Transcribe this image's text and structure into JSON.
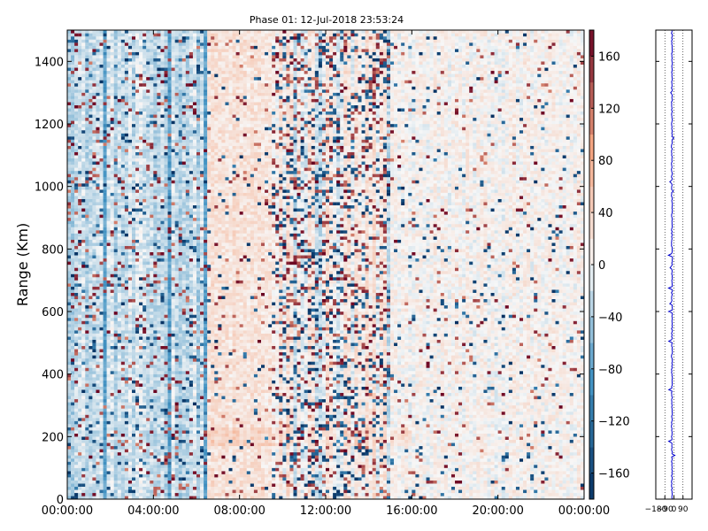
{
  "chart_data": [
    {
      "type": "heatmap",
      "title": "Phase 01: 12-Jul-2018 23:53:24",
      "xlabel": "",
      "ylabel": "Range (Km)",
      "x_tick_labels": [
        "00:00:00",
        "04:00:00",
        "08:00:00",
        "12:00:00",
        "16:00:00",
        "20:00:00",
        "00:00:00"
      ],
      "y_ticks": [
        0,
        200,
        400,
        600,
        800,
        1000,
        1200,
        1400
      ],
      "y_tick_labels": [
        "0",
        "200",
        "400",
        "600",
        "800",
        "1000",
        "1200",
        "1400"
      ],
      "xlim": [
        "00:00:00",
        "24:00:00"
      ],
      "ylim": [
        0,
        1500
      ],
      "colormap": "RdBu_r",
      "grid": false,
      "time_columns": 144,
      "range_rows": 150,
      "colorbar": {
        "range": [
          -180,
          180
        ],
        "ticks": [
          160,
          120,
          80,
          40,
          0,
          -40,
          -80,
          -120,
          -160
        ],
        "tick_labels": [
          "160",
          "120",
          "80",
          "40",
          "0",
          "−40",
          "−80",
          "−120",
          "−160"
        ],
        "colors": {
          "low": "#053061",
          "mid_low": "#4393c3",
          "mid": "#f7f7f7",
          "mid_high": "#f4a582",
          "high": "#67001f"
        }
      },
      "note_regions": [
        {
          "time_span_hours": [
            0,
            6.5
          ],
          "tendency": "blue",
          "noise": "moderate"
        },
        {
          "time_span_hours": [
            6.5,
            9.5
          ],
          "tendency": "orange",
          "noise": "low"
        },
        {
          "time_span_hours": [
            9.5,
            15
          ],
          "tendency": "mixed",
          "noise": "high"
        },
        {
          "time_span_hours": [
            15,
            24
          ],
          "tendency": "light",
          "noise": "low"
        }
      ]
    },
    {
      "type": "line",
      "title": "",
      "xlabel": "",
      "ylabel": "",
      "xlim": [
        -180,
        180
      ],
      "ylim": [
        0,
        1500
      ],
      "x_tick_labels": [
        "−180",
        "−90",
        "0",
        "90"
      ],
      "x_ticks": [
        -180,
        -90,
        0,
        90
      ],
      "grid": true,
      "series": [
        {
          "color": "#0000cc",
          "mean": -20
        }
      ]
    }
  ]
}
